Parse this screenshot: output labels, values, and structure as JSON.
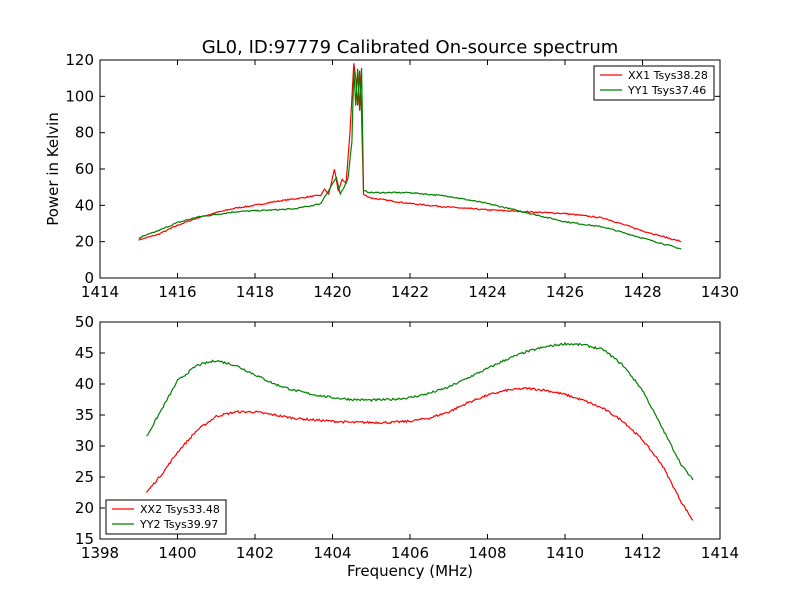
{
  "title": "GL0, ID:97779 Calibrated On-source spectrum",
  "chart_data": [
    {
      "type": "line",
      "ylabel": "Power in Kelvin",
      "xlabel": "",
      "xlim": [
        1414,
        1430
      ],
      "ylim": [
        0,
        120
      ],
      "xticks": [
        "1414",
        "1416",
        "1418",
        "1420",
        "1422",
        "1424",
        "1426",
        "1428",
        "1430"
      ],
      "yticks": [
        "0",
        "20",
        "40",
        "60",
        "80",
        "100",
        "120"
      ],
      "legend_position": "top-right",
      "grid": false,
      "series": [
        {
          "name": "XX1 Tsys38.28",
          "color": "#ff0000",
          "points": [
            [
              1415.0,
              21
            ],
            [
              1415.5,
              24
            ],
            [
              1416.0,
              29
            ],
            [
              1416.5,
              33
            ],
            [
              1417.0,
              36
            ],
            [
              1417.5,
              38.5
            ],
            [
              1418.0,
              40
            ],
            [
              1418.5,
              42
            ],
            [
              1419.0,
              43.5
            ],
            [
              1419.5,
              45
            ],
            [
              1419.7,
              45.5
            ],
            [
              1419.8,
              49
            ],
            [
              1419.9,
              46
            ],
            [
              1420.0,
              55
            ],
            [
              1420.05,
              60
            ],
            [
              1420.15,
              48
            ],
            [
              1420.25,
              54
            ],
            [
              1420.35,
              52
            ],
            [
              1420.45,
              80
            ],
            [
              1420.55,
              118
            ],
            [
              1420.6,
              110
            ],
            [
              1420.65,
              95
            ],
            [
              1420.7,
              114
            ],
            [
              1420.75,
              90
            ],
            [
              1420.8,
              46
            ],
            [
              1421.0,
              44
            ],
            [
              1422.0,
              41
            ],
            [
              1423.0,
              39
            ],
            [
              1424.0,
              37.5
            ],
            [
              1425.0,
              36.5
            ],
            [
              1426.0,
              35.5
            ],
            [
              1427.0,
              33
            ],
            [
              1428.0,
              26
            ],
            [
              1429.0,
              20
            ]
          ]
        },
        {
          "name": "YY1 Tsys37.46",
          "color": "#008000",
          "points": [
            [
              1415.0,
              22
            ],
            [
              1415.5,
              26
            ],
            [
              1416.0,
              30.5
            ],
            [
              1416.5,
              33.5
            ],
            [
              1417.0,
              35
            ],
            [
              1417.5,
              36.5
            ],
            [
              1418.0,
              37
            ],
            [
              1418.5,
              37.5
            ],
            [
              1419.0,
              38
            ],
            [
              1419.5,
              40
            ],
            [
              1419.7,
              41
            ],
            [
              1419.8,
              45
            ],
            [
              1419.9,
              48
            ],
            [
              1420.0,
              52
            ],
            [
              1420.1,
              55
            ],
            [
              1420.2,
              46
            ],
            [
              1420.3,
              50
            ],
            [
              1420.4,
              55
            ],
            [
              1420.5,
              75
            ],
            [
              1420.55,
              115
            ],
            [
              1420.6,
              95
            ],
            [
              1420.65,
              115
            ],
            [
              1420.7,
              92
            ],
            [
              1420.75,
              116
            ],
            [
              1420.8,
              48
            ],
            [
              1421.0,
              47
            ],
            [
              1422.0,
              47
            ],
            [
              1423.0,
              45
            ],
            [
              1424.0,
              41
            ],
            [
              1425.0,
              36
            ],
            [
              1426.0,
              31
            ],
            [
              1427.0,
              28
            ],
            [
              1428.0,
              22
            ],
            [
              1429.0,
              16
            ]
          ]
        }
      ]
    },
    {
      "type": "line",
      "xlabel": "Frequency (MHz)",
      "ylabel": "",
      "xlim": [
        1398,
        1414
      ],
      "ylim": [
        15,
        50
      ],
      "xticks": [
        "1398",
        "1400",
        "1402",
        "1404",
        "1406",
        "1408",
        "1410",
        "1412",
        "1414"
      ],
      "yticks": [
        "15",
        "20",
        "25",
        "30",
        "35",
        "40",
        "45",
        "50"
      ],
      "legend_position": "bottom-left",
      "grid": false,
      "series": [
        {
          "name": "XX2 Tsys33.48",
          "color": "#ff0000",
          "points": [
            [
              1399.2,
              22.5
            ],
            [
              1399.6,
              25.5
            ],
            [
              1400.0,
              29
            ],
            [
              1400.5,
              32.5
            ],
            [
              1401.0,
              34.8
            ],
            [
              1401.5,
              35.5
            ],
            [
              1402.0,
              35.5
            ],
            [
              1402.5,
              35
            ],
            [
              1403.0,
              34.5
            ],
            [
              1403.5,
              34.2
            ],
            [
              1404.0,
              34
            ],
            [
              1404.5,
              33.8
            ],
            [
              1405.0,
              33.8
            ],
            [
              1405.5,
              33.8
            ],
            [
              1406.0,
              34
            ],
            [
              1406.5,
              34.5
            ],
            [
              1407.0,
              35.5
            ],
            [
              1407.5,
              37
            ],
            [
              1408.0,
              38.2
            ],
            [
              1408.5,
              39
            ],
            [
              1409.0,
              39.3
            ],
            [
              1409.5,
              39
            ],
            [
              1410.0,
              38.3
            ],
            [
              1410.5,
              37.3
            ],
            [
              1411.0,
              36
            ],
            [
              1411.5,
              34
            ],
            [
              1412.0,
              31
            ],
            [
              1412.5,
              27
            ],
            [
              1413.0,
              21
            ],
            [
              1413.3,
              18
            ]
          ]
        },
        {
          "name": "YY2 Tsys39.97",
          "color": "#008000",
          "points": [
            [
              1399.2,
              31.5
            ],
            [
              1399.6,
              36
            ],
            [
              1400.0,
              40.5
            ],
            [
              1400.5,
              43
            ],
            [
              1401.0,
              43.8
            ],
            [
              1401.5,
              43
            ],
            [
              1402.0,
              41.5
            ],
            [
              1402.5,
              40
            ],
            [
              1403.0,
              39
            ],
            [
              1403.5,
              38.3
            ],
            [
              1404.0,
              37.8
            ],
            [
              1404.5,
              37.5
            ],
            [
              1405.0,
              37.4
            ],
            [
              1405.5,
              37.5
            ],
            [
              1406.0,
              37.8
            ],
            [
              1406.5,
              38.5
            ],
            [
              1407.0,
              39.5
            ],
            [
              1407.5,
              41
            ],
            [
              1408.0,
              42.5
            ],
            [
              1408.5,
              44
            ],
            [
              1409.0,
              45.2
            ],
            [
              1409.5,
              46
            ],
            [
              1410.0,
              46.5
            ],
            [
              1410.5,
              46.3
            ],
            [
              1411.0,
              45.5
            ],
            [
              1411.5,
              43
            ],
            [
              1412.0,
              39
            ],
            [
              1412.5,
              33
            ],
            [
              1413.0,
              27
            ],
            [
              1413.3,
              24.5
            ]
          ]
        }
      ]
    }
  ]
}
